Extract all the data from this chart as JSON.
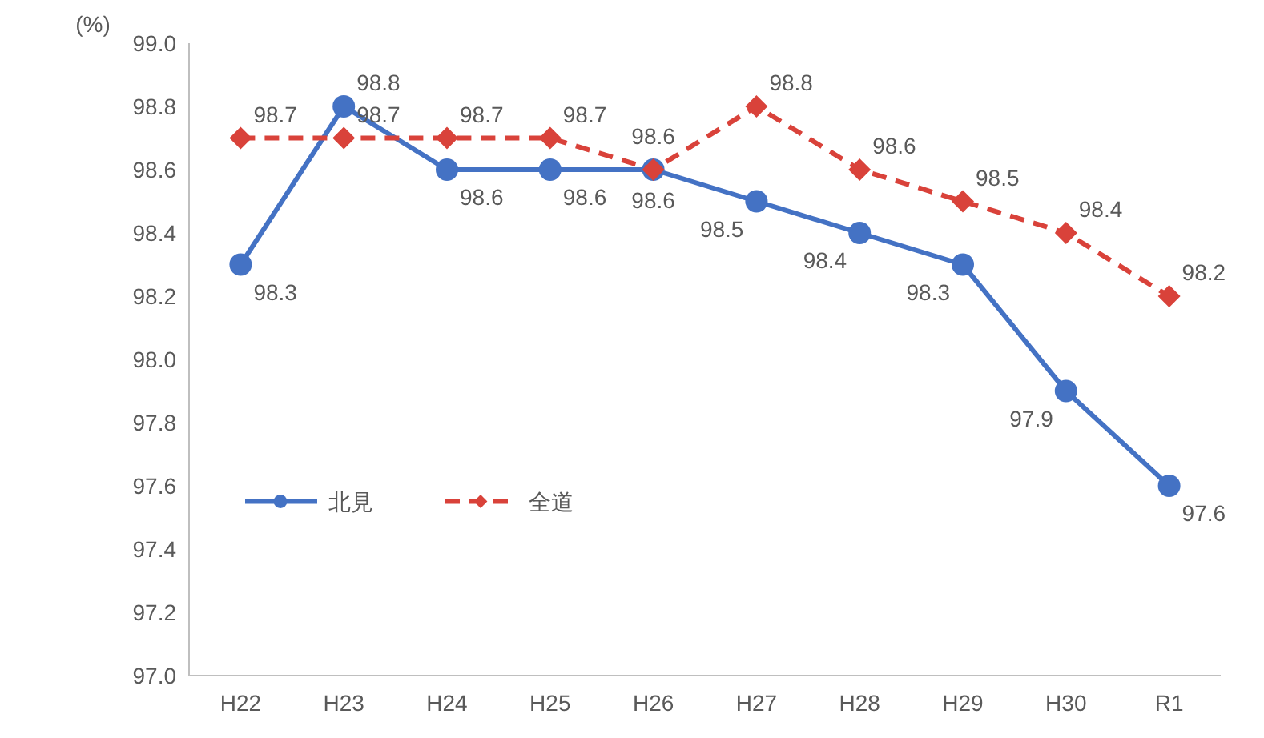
{
  "chart_data": {
    "type": "line",
    "ylabel": "(%)",
    "categories": [
      "H22",
      "H23",
      "H24",
      "H25",
      "H26",
      "H27",
      "H28",
      "H29",
      "H30",
      "R1"
    ],
    "series": [
      {
        "name": "北見",
        "color": "#4472c4",
        "marker": "circle",
        "line_style": "solid",
        "values": [
          98.3,
          98.8,
          98.6,
          98.6,
          98.6,
          98.5,
          98.4,
          98.3,
          97.9,
          97.6
        ]
      },
      {
        "name": "全道",
        "color": "#d9423a",
        "marker": "diamond",
        "line_style": "dashed",
        "values": [
          98.7,
          98.7,
          98.7,
          98.7,
          98.6,
          98.8,
          98.6,
          98.5,
          98.4,
          98.2
        ]
      }
    ],
    "ylim": [
      97,
      99
    ],
    "yticks": [
      {
        "value": 97,
        "label": "97.0"
      },
      97.2,
      97.4,
      97.6,
      97.8,
      {
        "value": 98,
        "label": "98.0"
      },
      98.2,
      98.4,
      98.6,
      98.8,
      {
        "value": 99,
        "label": "99.0"
      }
    ],
    "data_labels": true,
    "legend": "bottom left",
    "grid": false
  }
}
